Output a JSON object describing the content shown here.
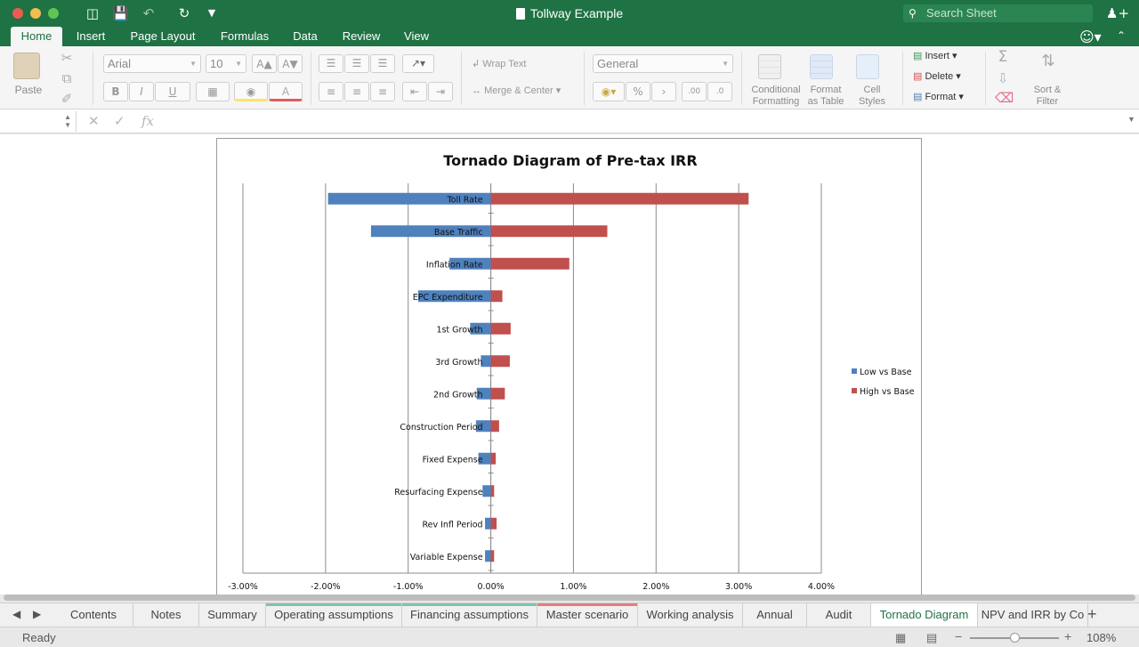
{
  "window": {
    "title": "Tollway Example"
  },
  "titlebar": {
    "search_placeholder": "Search Sheet"
  },
  "ribbon_tabs": [
    "Home",
    "Insert",
    "Page Layout",
    "Formulas",
    "Data",
    "Review",
    "View"
  ],
  "ribbon": {
    "paste_label": "Paste",
    "font_name": "Arial",
    "font_size": "10",
    "wrap_text": "Wrap Text",
    "merge_center": "Merge & Center",
    "number_format": "General",
    "conditional_formatting": [
      "Conditional",
      "Formatting"
    ],
    "format_as_table": [
      "Format",
      "as Table"
    ],
    "cell_styles": [
      "Cell",
      "Styles"
    ],
    "insert": "Insert",
    "delete": "Delete",
    "format": "Format",
    "sort_filter": [
      "Sort &",
      "Filter"
    ],
    "bold": "B",
    "italic": "I",
    "underline": "U",
    "percent": "%",
    "comma": "›",
    "inc_decimal": ".00",
    "dec_decimal": ".0",
    "fx": "fx"
  },
  "chart_data": {
    "type": "bar",
    "orientation": "horizontal",
    "stacked": true,
    "title": "Tornado Diagram of Pre-tax IRR",
    "categories": [
      "Toll Rate",
      "Base Traffic",
      "Inflation Rate",
      "EPC Expenditure",
      "1st Growth",
      "3rd Growth",
      "2nd Growth",
      "Construction Period",
      "Fixed Expense",
      "Resurfacing Expense",
      "Rev Infl Period",
      "Variable Expense"
    ],
    "series": [
      {
        "name": "Low vs Base",
        "color": "#4f81bd",
        "values": [
          -0.0197,
          -0.0145,
          -0.005,
          -0.0088,
          -0.0025,
          -0.0012,
          -0.0017,
          -0.0018,
          -0.0015,
          -0.001,
          -0.0007,
          -0.0007
        ]
      },
      {
        "name": "High vs Base",
        "color": "#c0504d",
        "values": [
          0.0312,
          0.0141,
          0.0095,
          0.0014,
          0.0024,
          0.0023,
          0.0017,
          0.001,
          0.0006,
          0.0004,
          0.0007,
          0.0004
        ]
      }
    ],
    "xlim": [
      -0.03,
      0.04
    ],
    "x_ticks": [
      "-3.00%",
      "-2.00%",
      "-1.00%",
      "0.00%",
      "1.00%",
      "2.00%",
      "3.00%",
      "4.00%"
    ],
    "grid": true,
    "legend_position": "right"
  },
  "sheet_tabs": [
    {
      "label": "Contents"
    },
    {
      "label": "Notes"
    },
    {
      "label": "Summary"
    },
    {
      "label": "Operating assumptions",
      "color": "#7fc4a4"
    },
    {
      "label": "Financing assumptions",
      "color": "#7fc4a4"
    },
    {
      "label": "Master scenario",
      "color": "#e47d7d"
    },
    {
      "label": "Working analysis"
    },
    {
      "label": "Annual"
    },
    {
      "label": "Audit"
    },
    {
      "label": "Tornado Diagram",
      "active": true
    },
    {
      "label": "NPV and IRR by Co"
    }
  ],
  "status": {
    "text": "Ready",
    "zoom": "108%"
  }
}
